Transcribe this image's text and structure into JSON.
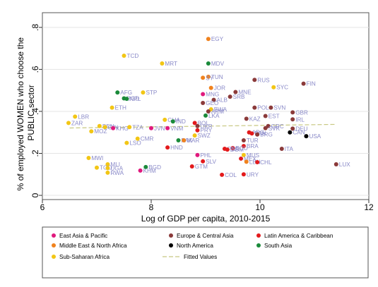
{
  "chart_data": {
    "type": "scatter",
    "xlabel": "Log of GDP per capita, 2010-2015",
    "ylabel_lines": [
      "% of employed WOMEN who choose the",
      "PUBLIC sector"
    ],
    "xlim": [
      6,
      12
    ],
    "ylim": [
      -0.02,
      0.87
    ],
    "xticks": [
      6,
      8,
      10,
      12
    ],
    "xtick_labels": [
      "6",
      "8",
      "10",
      "12"
    ],
    "yticks": [
      0,
      0.2,
      0.4,
      0.6,
      0.8
    ],
    "ytick_labels": [
      "0",
      ".2",
      ".4",
      ".6",
      ".8"
    ],
    "grid": true,
    "legend_position": "bottom",
    "regions": [
      {
        "key": "eap",
        "name": "East Asia & Pacific",
        "color": "#e0197d"
      },
      {
        "key": "eca",
        "name": "Europe & Central Asia",
        "color": "#8b3a3a"
      },
      {
        "key": "lac",
        "name": "Latin America & Caribbean",
        "color": "#e31a1c"
      },
      {
        "key": "mena",
        "name": "Middle East & North Africa",
        "color": "#f0821e"
      },
      {
        "key": "na",
        "name": "North America",
        "color": "#000000"
      },
      {
        "key": "sa",
        "name": "South Asia",
        "color": "#1a8a3a"
      },
      {
        "key": "ssa",
        "name": "Sub-Saharan Africa",
        "color": "#f2c615"
      }
    ],
    "fitted": {
      "name": "Fitted Values",
      "color": "#c8c882",
      "x": [
        6.5,
        11.4
      ],
      "y": [
        0.321,
        0.338
      ]
    },
    "label_color": "#8a8ac8",
    "points": [
      {
        "label": "EGY",
        "region": "mena",
        "x": 9.05,
        "y": 0.745
      },
      {
        "label": "TCD",
        "region": "ssa",
        "x": 7.5,
        "y": 0.665
      },
      {
        "label": "MRT",
        "region": "ssa",
        "x": 8.2,
        "y": 0.628
      },
      {
        "label": "MDV",
        "region": "sa",
        "x": 9.05,
        "y": 0.628
      },
      {
        "label": "TUN",
        "region": "mena",
        "x": 9.05,
        "y": 0.565
      },
      {
        "label": "SY",
        "region": "mena",
        "x": 8.95,
        "y": 0.56
      },
      {
        "label": "RUS",
        "region": "eca",
        "x": 9.9,
        "y": 0.55
      },
      {
        "label": "FIN",
        "region": "eca",
        "x": 10.8,
        "y": 0.532
      },
      {
        "label": "JOR",
        "region": "mena",
        "x": 9.1,
        "y": 0.512
      },
      {
        "label": "SYC",
        "region": "ssa",
        "x": 10.25,
        "y": 0.515
      },
      {
        "label": "AFG",
        "region": "sa",
        "x": 7.38,
        "y": 0.49
      },
      {
        "label": "STP",
        "region": "ssa",
        "x": 7.85,
        "y": 0.49
      },
      {
        "label": "MNG",
        "region": "eap",
        "x": 8.95,
        "y": 0.482
      },
      {
        "label": "MNE",
        "region": "eca",
        "x": 9.55,
        "y": 0.492
      },
      {
        "label": "SRB",
        "region": "eca",
        "x": 9.45,
        "y": 0.47
      },
      {
        "label": "BGD",
        "region": "sa",
        "x": 7.5,
        "y": 0.462
      },
      {
        "label": "NPL",
        "region": "sa",
        "x": 7.55,
        "y": 0.46
      },
      {
        "label": "ALB",
        "region": "eca",
        "x": 9.15,
        "y": 0.455
      },
      {
        "label": "GEO",
        "region": "eca",
        "x": 8.95,
        "y": 0.44
      },
      {
        "label": "ETH",
        "region": "ssa",
        "x": 7.28,
        "y": 0.418
      },
      {
        "label": "POL",
        "region": "eca",
        "x": 9.9,
        "y": 0.418
      },
      {
        "label": "SVN",
        "region": "eca",
        "x": 10.2,
        "y": 0.418
      },
      {
        "label": "BWA",
        "region": "ssa",
        "x": 9.1,
        "y": 0.41
      },
      {
        "label": "ARM",
        "region": "eca",
        "x": 9.05,
        "y": 0.4
      },
      {
        "label": "GBR",
        "region": "eca",
        "x": 10.6,
        "y": 0.395
      },
      {
        "label": "LKA",
        "region": "sa",
        "x": 9.0,
        "y": 0.38
      },
      {
        "label": "EST",
        "region": "eca",
        "x": 10.1,
        "y": 0.378
      },
      {
        "label": "KAZ",
        "region": "eca",
        "x": 9.75,
        "y": 0.365
      },
      {
        "label": "IRL",
        "region": "eca",
        "x": 10.6,
        "y": 0.362
      },
      {
        "label": "LBR",
        "region": "ssa",
        "x": 6.6,
        "y": 0.375
      },
      {
        "label": "GHA",
        "region": "ssa",
        "x": 8.25,
        "y": 0.36
      },
      {
        "label": "IND",
        "region": "sa",
        "x": 8.4,
        "y": 0.352
      },
      {
        "label": "BOL",
        "region": "lac",
        "x": 8.8,
        "y": 0.345
      },
      {
        "label": "ZAR",
        "region": "ssa",
        "x": 6.48,
        "y": 0.345
      },
      {
        "label": "BEN",
        "region": "ssa",
        "x": 7.05,
        "y": 0.33
      },
      {
        "label": "GIN",
        "region": "ssa",
        "x": 7.15,
        "y": 0.325
      },
      {
        "label": "KHG",
        "region": "eap",
        "x": 7.3,
        "y": 0.32
      },
      {
        "label": "TZA",
        "region": "ssa",
        "x": 7.6,
        "y": 0.325
      },
      {
        "label": "GRC",
        "region": "eca",
        "x": 10.15,
        "y": 0.33
      },
      {
        "label": "SVK",
        "region": "eca",
        "x": 10.1,
        "y": 0.32
      },
      {
        "label": "DEU",
        "region": "eca",
        "x": 10.6,
        "y": 0.318
      },
      {
        "label": "MOZ",
        "region": "ssa",
        "x": 6.9,
        "y": 0.305
      },
      {
        "label": "JVN",
        "region": "eap",
        "x": 8.0,
        "y": 0.32
      },
      {
        "label": "VNM",
        "region": "eap",
        "x": 8.3,
        "y": 0.32
      },
      {
        "label": "PRY",
        "region": "lac",
        "x": 8.85,
        "y": 0.31
      },
      {
        "label": "CAN",
        "region": "na",
        "x": 10.55,
        "y": 0.3
      },
      {
        "label": "UKR",
        "region": "eca",
        "x": 8.85,
        "y": 0.33
      },
      {
        "label": "ARG",
        "region": "lac",
        "x": 9.8,
        "y": 0.3
      },
      {
        "label": "PAN",
        "region": "lac",
        "x": 9.85,
        "y": 0.295
      },
      {
        "label": "BRG",
        "region": "eca",
        "x": 9.95,
        "y": 0.29
      },
      {
        "label": "USA",
        "region": "na",
        "x": 10.85,
        "y": 0.282
      },
      {
        "label": "SWZ",
        "region": "ssa",
        "x": 8.8,
        "y": 0.285
      },
      {
        "label": "CMR",
        "region": "ssa",
        "x": 7.75,
        "y": 0.27
      },
      {
        "label": "PAK",
        "region": "sa",
        "x": 8.5,
        "y": 0.262
      },
      {
        "label": "MAR",
        "region": "mena",
        "x": 8.6,
        "y": 0.262
      },
      {
        "label": "TUR",
        "region": "eca",
        "x": 9.7,
        "y": 0.262
      },
      {
        "label": "LSO",
        "region": "ssa",
        "x": 7.55,
        "y": 0.25
      },
      {
        "label": "BRA",
        "region": "lac",
        "x": 9.7,
        "y": 0.235
      },
      {
        "label": "HND",
        "region": "lac",
        "x": 8.3,
        "y": 0.228
      },
      {
        "label": "ECU",
        "region": "lac",
        "x": 9.5,
        "y": 0.225
      },
      {
        "label": "PER",
        "region": "lac",
        "x": 9.35,
        "y": 0.222
      },
      {
        "label": "DOM",
        "region": "lac",
        "x": 9.4,
        "y": 0.218
      },
      {
        "label": "ITA",
        "region": "eca",
        "x": 10.4,
        "y": 0.222
      },
      {
        "label": "PHL",
        "region": "eap",
        "x": 8.85,
        "y": 0.192
      },
      {
        "label": "MUS",
        "region": "ssa",
        "x": 9.7,
        "y": 0.192
      },
      {
        "label": "MEX",
        "region": "lac",
        "x": 9.65,
        "y": 0.175
      },
      {
        "label": "MWI",
        "region": "ssa",
        "x": 6.85,
        "y": 0.178
      },
      {
        "label": "SLV",
        "region": "lac",
        "x": 8.95,
        "y": 0.162
      },
      {
        "label": "LBN",
        "region": "mena",
        "x": 9.75,
        "y": 0.16
      },
      {
        "label": "CHL",
        "region": "lac",
        "x": 9.95,
        "y": 0.158
      },
      {
        "label": "LUX",
        "region": "eca",
        "x": 11.4,
        "y": 0.148
      },
      {
        "label": "MLI",
        "region": "ssa",
        "x": 7.2,
        "y": 0.148
      },
      {
        "label": "GTM",
        "region": "lac",
        "x": 8.75,
        "y": 0.138
      },
      {
        "label": "TGO",
        "region": "ssa",
        "x": 7.0,
        "y": 0.132
      },
      {
        "label": "UGA",
        "region": "ssa",
        "x": 7.2,
        "y": 0.13
      },
      {
        "label": "BGD",
        "region": "sa",
        "x": 7.9,
        "y": 0.135
      },
      {
        "label": "RWA",
        "region": "ssa",
        "x": 7.2,
        "y": 0.108
      },
      {
        "label": "KHM",
        "region": "eap",
        "x": 7.8,
        "y": 0.118
      },
      {
        "label": "COL",
        "region": "lac",
        "x": 9.3,
        "y": 0.098
      },
      {
        "label": "URY",
        "region": "lac",
        "x": 9.7,
        "y": 0.1
      }
    ]
  }
}
